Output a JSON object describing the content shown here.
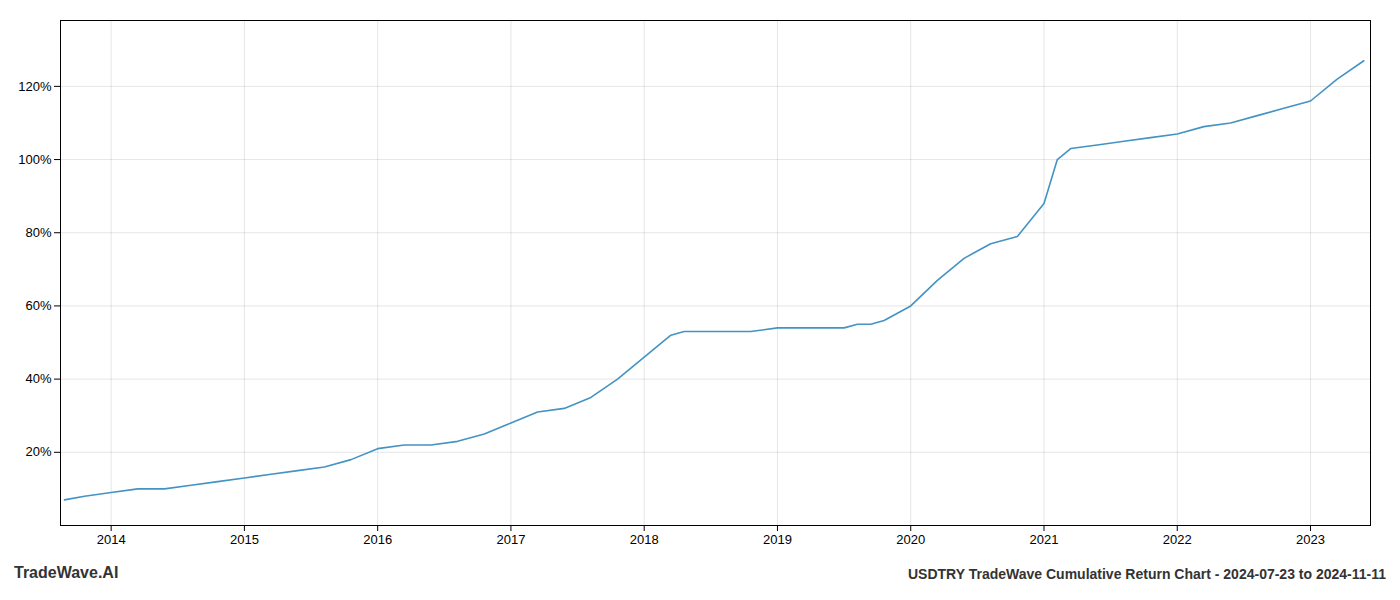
{
  "chart_data": {
    "type": "line",
    "title": "USDTRY TradeWave Cumulative Return Chart - 2024-07-23 to 2024-11-11",
    "annotations": [
      "TradeWave.AI"
    ],
    "color": "#4393c3",
    "grid": true,
    "xlim": [
      2013.62,
      2023.45
    ],
    "ylim": [
      0.0,
      1.38
    ],
    "xticks": [
      2014,
      2015,
      2016,
      2017,
      2018,
      2019,
      2020,
      2021,
      2022,
      2023
    ],
    "yticks": [
      {
        "value": 0.2,
        "label": "20%"
      },
      {
        "value": 0.4,
        "label": "40%"
      },
      {
        "value": 0.6,
        "label": "60%"
      },
      {
        "value": 0.8,
        "label": "80%"
      },
      {
        "value": 1.0,
        "label": "100%"
      },
      {
        "value": 1.2,
        "label": "120%"
      }
    ],
    "x": [
      2013.65,
      2013.8,
      2014.0,
      2014.2,
      2014.4,
      2014.6,
      2014.8,
      2015.0,
      2015.2,
      2015.4,
      2015.6,
      2015.8,
      2016.0,
      2016.2,
      2016.4,
      2016.6,
      2016.8,
      2017.0,
      2017.2,
      2017.4,
      2017.6,
      2017.8,
      2018.0,
      2018.1,
      2018.2,
      2018.3,
      2018.4,
      2018.6,
      2018.8,
      2019.0,
      2019.2,
      2019.4,
      2019.5,
      2019.6,
      2019.7,
      2019.8,
      2020.0,
      2020.2,
      2020.4,
      2020.5,
      2020.6,
      2020.8,
      2021.0,
      2021.1,
      2021.2,
      2021.4,
      2021.6,
      2021.8,
      2022.0,
      2022.2,
      2022.4,
      2022.6,
      2022.8,
      2023.0,
      2023.2,
      2023.4
    ],
    "values": [
      0.07,
      0.08,
      0.09,
      0.1,
      0.1,
      0.11,
      0.12,
      0.13,
      0.14,
      0.15,
      0.16,
      0.18,
      0.21,
      0.22,
      0.22,
      0.23,
      0.25,
      0.28,
      0.31,
      0.32,
      0.35,
      0.4,
      0.46,
      0.49,
      0.52,
      0.53,
      0.53,
      0.53,
      0.53,
      0.54,
      0.54,
      0.54,
      0.54,
      0.55,
      0.55,
      0.56,
      0.6,
      0.67,
      0.73,
      0.75,
      0.77,
      0.79,
      0.88,
      1.0,
      1.03,
      1.04,
      1.05,
      1.06,
      1.07,
      1.09,
      1.1,
      1.12,
      1.14,
      1.16,
      1.22,
      1.27
    ]
  }
}
